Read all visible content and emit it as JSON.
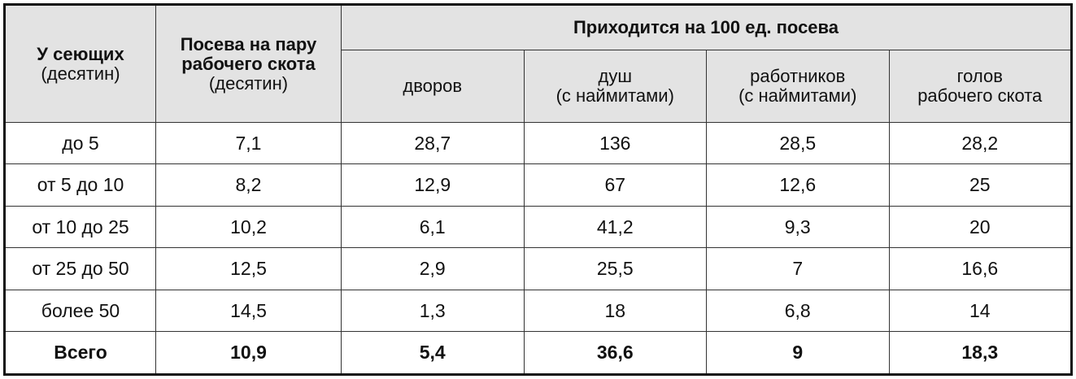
{
  "header": {
    "col1_title": "У сеющих",
    "col1_unit": "(десятин)",
    "col2_title_line1": "Посева на пару",
    "col2_title_line2": "рабочего скота",
    "col2_unit": "(десятин)",
    "group_title": "Приходится на 100 ед. посева",
    "sub": {
      "yards": "дворов",
      "souls_line1": "душ",
      "souls_line2": "(с наймитами)",
      "workers_line1": "работников",
      "workers_line2": "(с наймитами)",
      "cattle_line1": "голов",
      "cattle_line2": "рабочего скота"
    }
  },
  "rows": [
    [
      "до 5",
      "7,1",
      "28,7",
      "136",
      "28,5",
      "28,2"
    ],
    [
      "от 5 до 10",
      "8,2",
      "12,9",
      "67",
      "12,6",
      "25"
    ],
    [
      "от 10 до 25",
      "10,2",
      "6,1",
      "41,2",
      "9,3",
      "20"
    ],
    [
      "от 25 до 50",
      "12,5",
      "2,9",
      "25,5",
      "7",
      "16,6"
    ],
    [
      "более 50",
      "14,5",
      "1,3",
      "18",
      "6,8",
      "14"
    ]
  ],
  "total": [
    "Всего",
    "10,9",
    "5,4",
    "36,6",
    "9",
    "18,3"
  ]
}
